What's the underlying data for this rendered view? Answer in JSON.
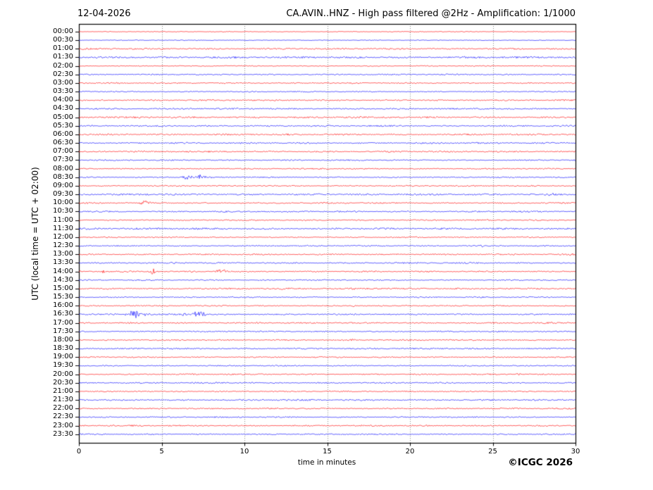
{
  "header": {
    "date": "12-04-2026",
    "title": "CA.AVIN..HNZ - High pass filtered @2Hz - Amplification: 1/1000"
  },
  "y_axis": {
    "label": "UTC (local time = UTC + 02:00)"
  },
  "x_axis": {
    "label": "time in minutes",
    "ticks": [
      "0",
      "5",
      "10",
      "15",
      "20",
      "25",
      "30"
    ],
    "range": [
      0,
      30
    ],
    "gridlines_minutes": [
      5,
      10,
      15,
      20,
      25
    ]
  },
  "footer": {
    "copyright": "©ICGC 2026"
  },
  "colors": {
    "trace_red": "#ff0000",
    "trace_blue": "#0000ff",
    "grid": "#888888",
    "frame": "#000000",
    "text": "#000000"
  },
  "chart_data": {
    "type": "line",
    "title": "CA.AVIN..HNZ - High pass filtered @2Hz - Amplification: 1/1000",
    "xlabel": "time in minutes",
    "ylabel": "UTC (local time = UTC + 02:00)",
    "xlim": [
      0,
      30
    ],
    "grid": "vertical-dotted-every-5-min",
    "row_spacing_minutes": 30,
    "rows": [
      {
        "time": "00:00",
        "color": "red",
        "noise": 0.6
      },
      {
        "time": "00:30",
        "color": "blue",
        "noise": 0.6
      },
      {
        "time": "01:00",
        "color": "red",
        "noise": 1.2
      },
      {
        "time": "01:30",
        "color": "blue",
        "noise": 1.5
      },
      {
        "time": "02:00",
        "color": "red",
        "noise": 0.8
      },
      {
        "time": "02:30",
        "color": "blue",
        "noise": 1.0
      },
      {
        "time": "03:00",
        "color": "red",
        "noise": 1.0
      },
      {
        "time": "03:30",
        "color": "blue",
        "noise": 0.9
      },
      {
        "time": "04:00",
        "color": "red",
        "noise": 1.1
      },
      {
        "time": "04:30",
        "color": "blue",
        "noise": 1.2
      },
      {
        "time": "05:00",
        "color": "red",
        "noise": 1.3
      },
      {
        "time": "05:30",
        "color": "blue",
        "noise": 1.2
      },
      {
        "time": "06:00",
        "color": "red",
        "noise": 1.3
      },
      {
        "time": "06:30",
        "color": "blue",
        "noise": 1.2
      },
      {
        "time": "07:00",
        "color": "red",
        "noise": 1.2
      },
      {
        "time": "07:30",
        "color": "blue",
        "noise": 1.0
      },
      {
        "time": "08:00",
        "color": "red",
        "noise": 1.0
      },
      {
        "time": "08:30",
        "color": "blue",
        "noise": 1.0,
        "events": [
          [
            6.1,
            7.0,
            2.8
          ],
          [
            7.0,
            7.7,
            4.0
          ],
          [
            7.7,
            8.2,
            1.2
          ]
        ]
      },
      {
        "time": "09:00",
        "color": "red",
        "noise": 1.0
      },
      {
        "time": "09:30",
        "color": "blue",
        "noise": 1.4,
        "events": [
          [
            28.3,
            28.9,
            1.8
          ]
        ]
      },
      {
        "time": "10:00",
        "color": "red",
        "noise": 1.1,
        "events": [
          [
            1.2,
            1.5,
            1.0
          ],
          [
            3.6,
            4.4,
            3.0
          ],
          [
            9.8,
            10.1,
            1.2
          ]
        ]
      },
      {
        "time": "10:30",
        "color": "blue",
        "noise": 1.2
      },
      {
        "time": "11:00",
        "color": "red",
        "noise": 1.0
      },
      {
        "time": "11:30",
        "color": "blue",
        "noise": 1.4
      },
      {
        "time": "12:00",
        "color": "red",
        "noise": 1.0
      },
      {
        "time": "12:30",
        "color": "blue",
        "noise": 1.0,
        "events": [
          [
            24.2,
            24.6,
            1.3
          ]
        ]
      },
      {
        "time": "13:00",
        "color": "red",
        "noise": 1.1,
        "events": [
          [
            29.5,
            29.9,
            1.5
          ]
        ]
      },
      {
        "time": "13:30",
        "color": "blue",
        "noise": 1.2
      },
      {
        "time": "14:00",
        "color": "red",
        "noise": 1.1,
        "events": [
          [
            1.3,
            1.7,
            3.0
          ],
          [
            4.2,
            4.7,
            3.5
          ],
          [
            6.7,
            7.0,
            0.8
          ],
          [
            8.1,
            9.1,
            2.5
          ]
        ]
      },
      {
        "time": "14:30",
        "color": "blue",
        "noise": 1.0
      },
      {
        "time": "15:00",
        "color": "red",
        "noise": 1.2,
        "events": [
          [
            11.7,
            13.2,
            0.8
          ],
          [
            16.0,
            19.3,
            1.0
          ]
        ]
      },
      {
        "time": "15:30",
        "color": "blue",
        "noise": 1.0
      },
      {
        "time": "16:00",
        "color": "red",
        "noise": 1.0,
        "events": [
          [
            16.4,
            16.8,
            1.6
          ]
        ]
      },
      {
        "time": "16:30",
        "color": "blue",
        "noise": 1.1,
        "events": [
          [
            2.9,
            3.7,
            6.5
          ],
          [
            3.8,
            4.4,
            2.0
          ],
          [
            6.0,
            6.6,
            1.6
          ],
          [
            6.8,
            7.6,
            7.0
          ]
        ]
      },
      {
        "time": "17:00",
        "color": "red",
        "noise": 1.2
      },
      {
        "time": "17:30",
        "color": "blue",
        "noise": 1.0
      },
      {
        "time": "18:00",
        "color": "red",
        "noise": 1.0,
        "events": [
          [
            16.4,
            16.8,
            1.4
          ]
        ]
      },
      {
        "time": "18:30",
        "color": "blue",
        "noise": 1.2
      },
      {
        "time": "19:00",
        "color": "red",
        "noise": 1.0
      },
      {
        "time": "19:30",
        "color": "blue",
        "noise": 1.0
      },
      {
        "time": "20:00",
        "color": "red",
        "noise": 1.0,
        "events": [
          [
            26.3,
            26.7,
            1.4
          ]
        ]
      },
      {
        "time": "20:30",
        "color": "blue",
        "noise": 1.1
      },
      {
        "time": "21:00",
        "color": "red",
        "noise": 1.0
      },
      {
        "time": "21:30",
        "color": "blue",
        "noise": 1.2
      },
      {
        "time": "22:00",
        "color": "red",
        "noise": 1.1
      },
      {
        "time": "22:30",
        "color": "blue",
        "noise": 1.0
      },
      {
        "time": "23:00",
        "color": "red",
        "noise": 1.1
      },
      {
        "time": "23:30",
        "color": "blue",
        "noise": 1.0
      }
    ]
  }
}
